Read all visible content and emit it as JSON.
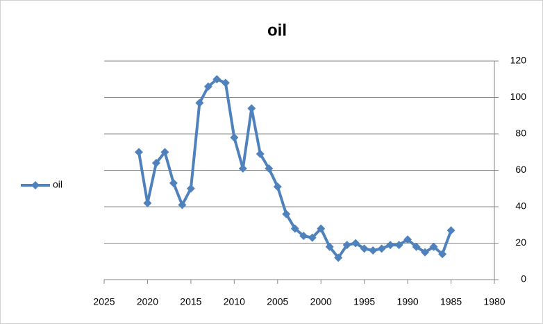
{
  "chart_data": {
    "type": "line",
    "title": "oil",
    "x": [
      2021,
      2020,
      2019,
      2018,
      2017,
      2016,
      2015,
      2014,
      2013,
      2012,
      2011,
      2010,
      2009,
      2008,
      2007,
      2006,
      2005,
      2004,
      2003,
      2002,
      2001,
      2000,
      1999,
      1998,
      1997,
      1996,
      1995,
      1994,
      1993,
      1992,
      1991,
      1990,
      1989,
      1988,
      1987,
      1986,
      1985
    ],
    "series": [
      {
        "name": "oil",
        "color": "#4f81bd",
        "values": [
          70,
          42,
          64,
          70,
          53,
          41,
          50,
          97,
          106,
          110,
          108,
          78,
          61,
          94,
          69,
          61,
          51,
          36,
          28,
          24,
          23,
          28,
          18,
          12,
          19,
          20,
          17,
          16,
          17,
          19,
          19,
          22,
          18,
          15,
          18,
          14,
          27
        ]
      }
    ],
    "xlim": [
      2025,
      1980
    ],
    "xticks": [
      2025,
      2020,
      2015,
      2010,
      2005,
      2000,
      1995,
      1990,
      1985,
      1980
    ],
    "ylim": [
      0,
      120
    ],
    "yticks": [
      0,
      20,
      40,
      60,
      80,
      100,
      120
    ],
    "grid": true,
    "legend": "left"
  }
}
